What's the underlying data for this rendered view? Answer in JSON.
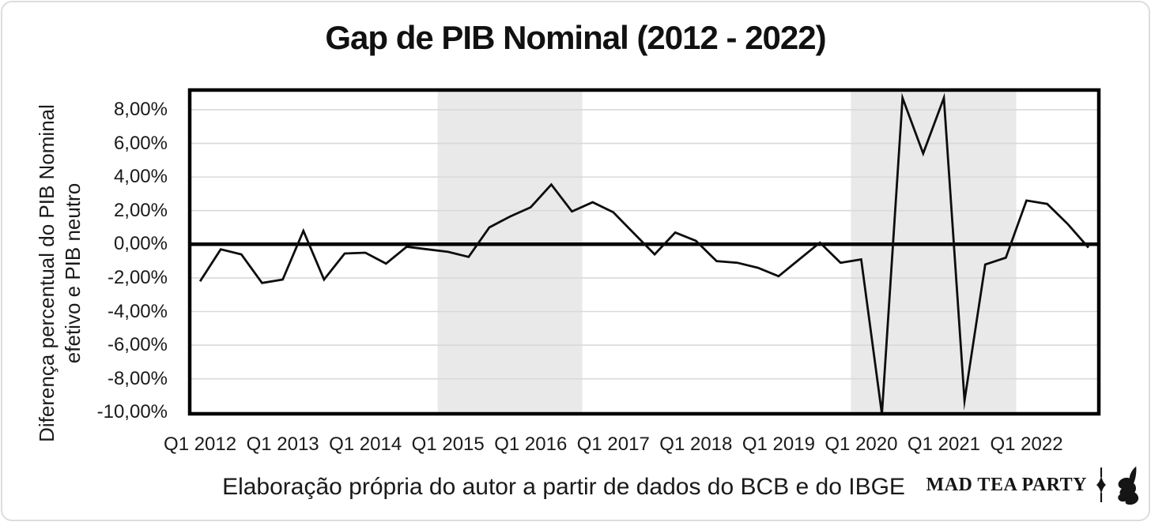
{
  "page": {
    "background": "#ffffff",
    "border_color": "#dcdcdc"
  },
  "header": {
    "title": "Gap de PIB Nominal (2012 - 2022)"
  },
  "chart_data": {
    "type": "line",
    "title": "Gap de PIB Nominal (2012 - 2022)",
    "ylabel_line1": "Diferença percentual do PIB Nominal",
    "ylabel_line2": "efetivo e PIB neutro",
    "xlabel": "",
    "categories": [
      "Q1 2012",
      "Q2 2012",
      "Q3 2012",
      "Q4 2012",
      "Q1 2013",
      "Q2 2013",
      "Q3 2013",
      "Q4 2013",
      "Q1 2014",
      "Q2 2014",
      "Q3 2014",
      "Q4 2014",
      "Q1 2015",
      "Q2 2015",
      "Q3 2015",
      "Q4 2015",
      "Q1 2016",
      "Q2 2016",
      "Q3 2016",
      "Q4 2016",
      "Q1 2017",
      "Q2 2017",
      "Q3 2017",
      "Q4 2017",
      "Q1 2018",
      "Q2 2018",
      "Q3 2018",
      "Q4 2018",
      "Q1 2019",
      "Q2 2019",
      "Q3 2019",
      "Q4 2019",
      "Q1 2020",
      "Q2 2020",
      "Q3 2020",
      "Q4 2020",
      "Q1 2021",
      "Q2 2021",
      "Q3 2021",
      "Q4 2021",
      "Q1 2022",
      "Q2 2022",
      "Q3 2022",
      "Q4 2022"
    ],
    "values": [
      -2.2,
      -0.3,
      -0.6,
      -2.3,
      -2.1,
      0.8,
      -2.1,
      -0.55,
      -0.5,
      -1.15,
      -0.15,
      -0.3,
      -0.45,
      -0.75,
      1.0,
      1.65,
      2.2,
      3.55,
      1.95,
      2.5,
      1.9,
      0.65,
      -0.6,
      0.7,
      0.2,
      -1.0,
      -1.1,
      -1.4,
      -1.9,
      -0.9,
      0.1,
      -1.1,
      -0.9,
      -10.1,
      8.7,
      5.4,
      8.7,
      -9.3,
      -1.2,
      -0.8,
      2.6,
      2.4,
      1.2,
      -0.2
    ],
    "x_tick_labels": [
      "Q1 2012",
      "Q1 2013",
      "Q1 2014",
      "Q1 2015",
      "Q1 2016",
      "Q1 2017",
      "Q1 2018",
      "Q1 2019",
      "Q1 2020",
      "Q1 2021",
      "Q1 2022"
    ],
    "y_ticks": [
      {
        "value": 8,
        "label": "8,00%"
      },
      {
        "value": 6,
        "label": "6,00%"
      },
      {
        "value": 4,
        "label": "4,00%"
      },
      {
        "value": 2,
        "label": "2,00%"
      },
      {
        "value": 0,
        "label": "0,00%"
      },
      {
        "value": -2,
        "label": "-2,00%"
      },
      {
        "value": -4,
        "label": "-4,00%"
      },
      {
        "value": -6,
        "label": "-6,00%"
      },
      {
        "value": -8,
        "label": "-8,00%"
      },
      {
        "value": -10,
        "label": "-10,00%"
      }
    ],
    "ylim": [
      -10.08,
      9.17
    ],
    "grid": true,
    "legend": "none",
    "line_color": "#0d0d0d",
    "zero_line_color": "#000000",
    "frame_color": "#000000",
    "gridline_color": "#d9d9d9",
    "band_color": "#e9e9e9",
    "shaded_bands": [
      {
        "from_index": 11.5,
        "to_index": 18.5
      },
      {
        "from_index": 31.5,
        "to_index": 39.5
      }
    ]
  },
  "footer": {
    "caption": "Elaboração própria do autor a partir de dados do BCB e do IBGE",
    "logo_text": "MAD TEA PARTY"
  }
}
